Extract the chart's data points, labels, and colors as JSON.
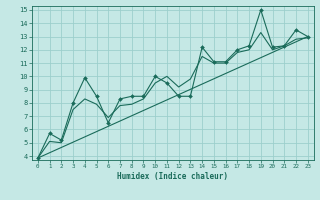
{
  "xlabel": "Humidex (Indice chaleur)",
  "bg_color": "#c5e8e5",
  "grid_color": "#9dcfcc",
  "line_color": "#1a6b5a",
  "marker_color": "#1a6b5a",
  "xlim": [
    -0.5,
    23.5
  ],
  "ylim": [
    3.7,
    15.3
  ],
  "xticks": [
    0,
    1,
    2,
    3,
    4,
    5,
    6,
    7,
    8,
    9,
    10,
    11,
    12,
    13,
    14,
    15,
    16,
    17,
    18,
    19,
    20,
    21,
    22,
    23
  ],
  "yticks": [
    4,
    5,
    6,
    7,
    8,
    9,
    10,
    11,
    12,
    13,
    14,
    15
  ],
  "series": [
    [
      0,
      3.85
    ],
    [
      1,
      5.7
    ],
    [
      2,
      5.2
    ],
    [
      3,
      8.0
    ],
    [
      4,
      9.9
    ],
    [
      5,
      8.5
    ],
    [
      6,
      6.5
    ],
    [
      7,
      8.3
    ],
    [
      8,
      8.5
    ],
    [
      9,
      8.5
    ],
    [
      10,
      10.0
    ],
    [
      11,
      9.5
    ],
    [
      12,
      8.5
    ],
    [
      13,
      8.5
    ],
    [
      14,
      12.2
    ],
    [
      15,
      11.1
    ],
    [
      16,
      11.1
    ],
    [
      17,
      12.0
    ],
    [
      18,
      12.3
    ],
    [
      19,
      15.0
    ],
    [
      20,
      12.2
    ],
    [
      21,
      12.3
    ],
    [
      22,
      13.5
    ],
    [
      23,
      13.0
    ]
  ],
  "linear_series": [
    [
      0,
      3.85
    ],
    [
      23,
      13.0
    ]
  ],
  "smooth_series": [
    [
      0,
      3.85
    ],
    [
      1,
      5.1
    ],
    [
      2,
      5.0
    ],
    [
      3,
      7.5
    ],
    [
      4,
      8.3
    ],
    [
      5,
      7.9
    ],
    [
      6,
      6.9
    ],
    [
      7,
      7.8
    ],
    [
      8,
      7.9
    ],
    [
      9,
      8.3
    ],
    [
      10,
      9.5
    ],
    [
      11,
      10.0
    ],
    [
      12,
      9.2
    ],
    [
      13,
      9.8
    ],
    [
      14,
      11.5
    ],
    [
      15,
      11.0
    ],
    [
      16,
      11.0
    ],
    [
      17,
      11.8
    ],
    [
      18,
      12.0
    ],
    [
      19,
      13.3
    ],
    [
      20,
      12.0
    ],
    [
      21,
      12.3
    ],
    [
      22,
      12.8
    ],
    [
      23,
      12.9
    ]
  ]
}
